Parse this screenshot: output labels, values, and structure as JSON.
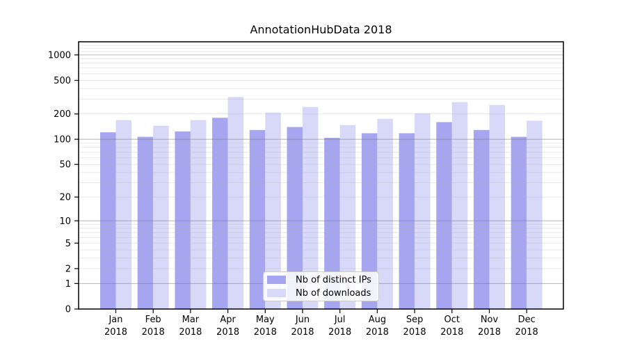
{
  "title": "AnnotationHubData 2018",
  "chart_data": {
    "type": "bar",
    "title": "AnnotationHubData 2018",
    "x_months": [
      "Jan",
      "Feb",
      "Mar",
      "Apr",
      "May",
      "Jun",
      "Jul",
      "Aug",
      "Sep",
      "Oct",
      "Nov",
      "Dec"
    ],
    "x_year": "2018",
    "series": [
      {
        "name": "Nb of distinct IPs",
        "color": "#a5a5f0",
        "values": [
          121,
          107,
          124,
          180,
          129,
          140,
          104,
          118,
          118,
          160,
          129,
          107
        ]
      },
      {
        "name": "Nb of downloads",
        "color": "#d8d8f8",
        "values": [
          169,
          145,
          169,
          318,
          208,
          242,
          147,
          175,
          204,
          276,
          256,
          166
        ]
      }
    ],
    "yscale": "log1p",
    "yticks": [
      0,
      1,
      2,
      5,
      10,
      20,
      50,
      100,
      200,
      500,
      1000
    ],
    "ylim": [
      0,
      1430
    ],
    "grid": "on",
    "legend_position": "inside lower center"
  },
  "legend": {
    "items": [
      {
        "label": "Nb of distinct IPs",
        "color": "#a5a5f0"
      },
      {
        "label": "Nb of downloads",
        "color": "#d8d8f8"
      }
    ]
  }
}
